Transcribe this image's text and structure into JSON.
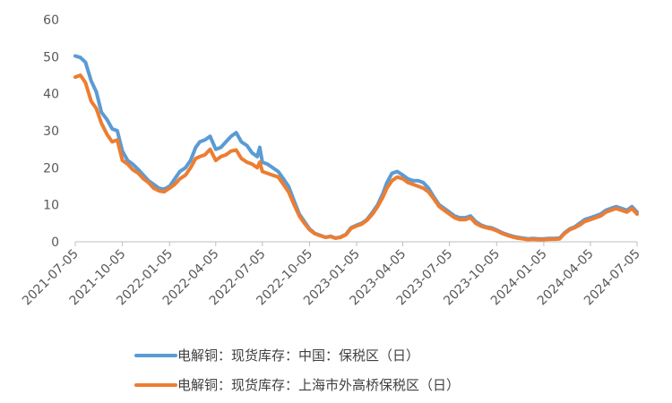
{
  "chart_data": {
    "type": "line",
    "title": "",
    "xlabel": "",
    "ylabel": "",
    "ylim": [
      0,
      60
    ],
    "yticks": [
      0,
      10,
      20,
      30,
      40,
      50,
      60
    ],
    "x_start": "2021-07-05",
    "x_end": "2024-07-05",
    "x_ticks": [
      "2021-07-05",
      "2021-10-05",
      "2022-01-05",
      "2022-04-05",
      "2022-07-05",
      "2022-10-05",
      "2023-01-05",
      "2023-04-05",
      "2023-07-05",
      "2023-10-05",
      "2024-01-05",
      "2024-04-05",
      "2024-07-05"
    ],
    "grid": false,
    "legend_position": "bottom",
    "series": [
      {
        "name": "电解铜：现货库存：中国：保税区（日）",
        "color": "#5B9BD5",
        "points": [
          [
            "2021-07-05",
            50.2
          ],
          [
            "2021-07-15",
            49.8
          ],
          [
            "2021-07-25",
            48.5
          ],
          [
            "2021-08-05",
            43.5
          ],
          [
            "2021-08-15",
            40.5
          ],
          [
            "2021-08-25",
            35.0
          ],
          [
            "2021-09-05",
            33.0
          ],
          [
            "2021-09-15",
            30.5
          ],
          [
            "2021-09-25",
            30.0
          ],
          [
            "2021-10-05",
            24.5
          ],
          [
            "2021-10-15",
            22.0
          ],
          [
            "2021-10-25",
            21.0
          ],
          [
            "2021-11-05",
            19.5
          ],
          [
            "2021-11-15",
            18.0
          ],
          [
            "2021-11-25",
            16.5
          ],
          [
            "2021-12-05",
            15.5
          ],
          [
            "2021-12-15",
            14.5
          ],
          [
            "2021-12-25",
            14.2
          ],
          [
            "2022-01-05",
            15.0
          ],
          [
            "2022-01-15",
            17.0
          ],
          [
            "2022-01-25",
            19.0
          ],
          [
            "2022-02-05",
            20.0
          ],
          [
            "2022-02-15",
            22.0
          ],
          [
            "2022-02-25",
            25.5
          ],
          [
            "2022-03-05",
            27.0
          ],
          [
            "2022-03-15",
            27.5
          ],
          [
            "2022-03-25",
            28.5
          ],
          [
            "2022-04-05",
            25.0
          ],
          [
            "2022-04-15",
            25.5
          ],
          [
            "2022-04-25",
            27.0
          ],
          [
            "2022-05-05",
            28.5
          ],
          [
            "2022-05-15",
            29.5
          ],
          [
            "2022-05-25",
            27.0
          ],
          [
            "2022-06-05",
            26.0
          ],
          [
            "2022-06-15",
            24.0
          ],
          [
            "2022-06-25",
            23.0
          ],
          [
            "2022-06-30",
            25.5
          ],
          [
            "2022-07-05",
            21.5
          ],
          [
            "2022-07-15",
            21.0
          ],
          [
            "2022-07-25",
            20.0
          ],
          [
            "2022-08-05",
            19.0
          ],
          [
            "2022-08-15",
            17.0
          ],
          [
            "2022-08-25",
            15.0
          ],
          [
            "2022-09-05",
            11.0
          ],
          [
            "2022-09-15",
            7.5
          ],
          [
            "2022-09-25",
            5.5
          ],
          [
            "2022-10-05",
            3.5
          ],
          [
            "2022-10-15",
            2.3
          ],
          [
            "2022-10-25",
            1.8
          ],
          [
            "2022-11-05",
            1.2
          ],
          [
            "2022-11-15",
            1.5
          ],
          [
            "2022-11-25",
            1.0
          ],
          [
            "2022-12-05",
            1.3
          ],
          [
            "2022-12-15",
            2.0
          ],
          [
            "2022-12-25",
            3.8
          ],
          [
            "2023-01-05",
            4.5
          ],
          [
            "2023-01-15",
            5.0
          ],
          [
            "2023-01-25",
            6.0
          ],
          [
            "2023-02-05",
            8.0
          ],
          [
            "2023-02-15",
            10.0
          ],
          [
            "2023-02-25",
            13.0
          ],
          [
            "2023-03-05",
            16.0
          ],
          [
            "2023-03-15",
            18.5
          ],
          [
            "2023-03-25",
            19.0
          ],
          [
            "2023-04-05",
            18.0
          ],
          [
            "2023-04-15",
            17.0
          ],
          [
            "2023-04-25",
            16.5
          ],
          [
            "2023-05-05",
            16.5
          ],
          [
            "2023-05-15",
            16.0
          ],
          [
            "2023-05-25",
            14.5
          ],
          [
            "2023-06-05",
            12.0
          ],
          [
            "2023-06-15",
            10.0
          ],
          [
            "2023-06-25",
            9.0
          ],
          [
            "2023-07-05",
            8.0
          ],
          [
            "2023-07-15",
            7.0
          ],
          [
            "2023-07-25",
            6.5
          ],
          [
            "2023-08-05",
            6.5
          ],
          [
            "2023-08-15",
            7.0
          ],
          [
            "2023-08-25",
            5.5
          ],
          [
            "2023-09-05",
            4.5
          ],
          [
            "2023-09-15",
            4.0
          ],
          [
            "2023-09-25",
            3.8
          ],
          [
            "2023-10-05",
            3.2
          ],
          [
            "2023-10-15",
            2.5
          ],
          [
            "2023-10-25",
            2.0
          ],
          [
            "2023-11-05",
            1.5
          ],
          [
            "2023-11-15",
            1.2
          ],
          [
            "2023-11-25",
            1.0
          ],
          [
            "2023-12-05",
            0.8
          ],
          [
            "2023-12-15",
            0.9
          ],
          [
            "2023-12-25",
            0.8
          ],
          [
            "2024-01-05",
            0.8
          ],
          [
            "2024-01-15",
            0.9
          ],
          [
            "2024-01-25",
            0.9
          ],
          [
            "2024-02-05",
            1.0
          ],
          [
            "2024-02-15",
            2.5
          ],
          [
            "2024-02-25",
            3.5
          ],
          [
            "2024-03-05",
            4.0
          ],
          [
            "2024-03-15",
            5.0
          ],
          [
            "2024-03-25",
            6.0
          ],
          [
            "2024-04-05",
            6.5
          ],
          [
            "2024-04-15",
            7.0
          ],
          [
            "2024-04-25",
            7.5
          ],
          [
            "2024-05-05",
            8.5
          ],
          [
            "2024-05-15",
            9.0
          ],
          [
            "2024-05-25",
            9.5
          ],
          [
            "2024-06-05",
            9.0
          ],
          [
            "2024-06-15",
            8.5
          ],
          [
            "2024-06-25",
            9.5
          ],
          [
            "2024-07-05",
            8.0
          ]
        ]
      },
      {
        "name": "电解铜：现货库存：上海市外高桥保税区（日）",
        "color": "#ED7D31",
        "points": [
          [
            "2021-07-05",
            44.5
          ],
          [
            "2021-07-15",
            45.0
          ],
          [
            "2021-07-25",
            43.0
          ],
          [
            "2021-08-05",
            38.0
          ],
          [
            "2021-08-15",
            36.0
          ],
          [
            "2021-08-25",
            32.0
          ],
          [
            "2021-09-05",
            29.0
          ],
          [
            "2021-09-15",
            27.0
          ],
          [
            "2021-09-25",
            27.5
          ],
          [
            "2021-10-05",
            22.0
          ],
          [
            "2021-10-15",
            21.0
          ],
          [
            "2021-10-25",
            19.5
          ],
          [
            "2021-11-05",
            18.5
          ],
          [
            "2021-11-15",
            17.0
          ],
          [
            "2021-11-25",
            16.0
          ],
          [
            "2021-12-05",
            14.5
          ],
          [
            "2021-12-15",
            13.8
          ],
          [
            "2021-12-25",
            13.5
          ],
          [
            "2022-01-05",
            14.5
          ],
          [
            "2022-01-15",
            15.5
          ],
          [
            "2022-01-25",
            17.0
          ],
          [
            "2022-02-05",
            18.0
          ],
          [
            "2022-02-15",
            20.0
          ],
          [
            "2022-02-25",
            22.5
          ],
          [
            "2022-03-05",
            23.0
          ],
          [
            "2022-03-15",
            23.5
          ],
          [
            "2022-03-25",
            25.0
          ],
          [
            "2022-04-05",
            22.0
          ],
          [
            "2022-04-15",
            23.0
          ],
          [
            "2022-04-25",
            23.5
          ],
          [
            "2022-05-05",
            24.5
          ],
          [
            "2022-05-15",
            24.8
          ],
          [
            "2022-05-25",
            22.5
          ],
          [
            "2022-06-05",
            21.5
          ],
          [
            "2022-06-15",
            21.0
          ],
          [
            "2022-06-25",
            20.0
          ],
          [
            "2022-06-30",
            21.5
          ],
          [
            "2022-07-05",
            19.0
          ],
          [
            "2022-07-15",
            18.5
          ],
          [
            "2022-07-25",
            18.0
          ],
          [
            "2022-08-05",
            17.5
          ],
          [
            "2022-08-15",
            15.5
          ],
          [
            "2022-08-25",
            13.5
          ],
          [
            "2022-09-05",
            10.0
          ],
          [
            "2022-09-15",
            7.0
          ],
          [
            "2022-09-25",
            5.0
          ],
          [
            "2022-10-05",
            3.3
          ],
          [
            "2022-10-15",
            2.2
          ],
          [
            "2022-10-25",
            1.7
          ],
          [
            "2022-11-05",
            1.2
          ],
          [
            "2022-11-15",
            1.4
          ],
          [
            "2022-11-25",
            1.0
          ],
          [
            "2022-12-05",
            1.2
          ],
          [
            "2022-12-15",
            1.9
          ],
          [
            "2022-12-25",
            3.6
          ],
          [
            "2023-01-05",
            4.3
          ],
          [
            "2023-01-15",
            4.8
          ],
          [
            "2023-01-25",
            5.8
          ],
          [
            "2023-02-05",
            7.5
          ],
          [
            "2023-02-15",
            9.5
          ],
          [
            "2023-02-25",
            12.0
          ],
          [
            "2023-03-05",
            14.5
          ],
          [
            "2023-03-15",
            16.5
          ],
          [
            "2023-03-25",
            17.5
          ],
          [
            "2023-04-05",
            17.0
          ],
          [
            "2023-04-15",
            16.0
          ],
          [
            "2023-04-25",
            15.5
          ],
          [
            "2023-05-05",
            15.0
          ],
          [
            "2023-05-15",
            14.5
          ],
          [
            "2023-05-25",
            13.5
          ],
          [
            "2023-06-05",
            11.5
          ],
          [
            "2023-06-15",
            9.5
          ],
          [
            "2023-06-25",
            8.5
          ],
          [
            "2023-07-05",
            7.5
          ],
          [
            "2023-07-15",
            6.5
          ],
          [
            "2023-07-25",
            6.0
          ],
          [
            "2023-08-05",
            6.0
          ],
          [
            "2023-08-15",
            6.5
          ],
          [
            "2023-08-25",
            5.0
          ],
          [
            "2023-09-05",
            4.2
          ],
          [
            "2023-09-15",
            3.8
          ],
          [
            "2023-09-25",
            3.5
          ],
          [
            "2023-10-05",
            3.0
          ],
          [
            "2023-10-15",
            2.3
          ],
          [
            "2023-10-25",
            1.8
          ],
          [
            "2023-11-05",
            1.3
          ],
          [
            "2023-11-15",
            1.0
          ],
          [
            "2023-11-25",
            0.8
          ],
          [
            "2023-12-05",
            0.6
          ],
          [
            "2023-12-15",
            0.7
          ],
          [
            "2023-12-25",
            0.6
          ],
          [
            "2024-01-05",
            0.6
          ],
          [
            "2024-01-15",
            0.7
          ],
          [
            "2024-01-25",
            0.7
          ],
          [
            "2024-02-05",
            0.8
          ],
          [
            "2024-02-15",
            2.3
          ],
          [
            "2024-02-25",
            3.3
          ],
          [
            "2024-03-05",
            3.8
          ],
          [
            "2024-03-15",
            4.5
          ],
          [
            "2024-03-25",
            5.5
          ],
          [
            "2024-04-05",
            6.0
          ],
          [
            "2024-04-15",
            6.5
          ],
          [
            "2024-04-25",
            7.0
          ],
          [
            "2024-05-05",
            8.0
          ],
          [
            "2024-05-15",
            8.5
          ],
          [
            "2024-05-25",
            9.0
          ],
          [
            "2024-06-05",
            8.5
          ],
          [
            "2024-06-15",
            8.0
          ],
          [
            "2024-06-25",
            9.0
          ],
          [
            "2024-07-05",
            7.5
          ]
        ]
      }
    ]
  }
}
